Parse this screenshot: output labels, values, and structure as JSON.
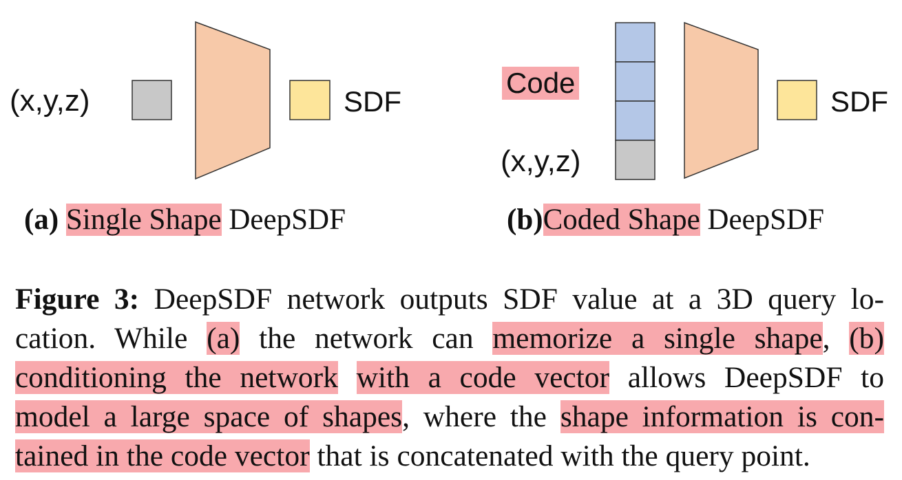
{
  "figure_a": {
    "input_label": "(x,y,z)",
    "output_label": "SDF",
    "caption_tag": "(a)",
    "caption_highlight": "Single Shape",
    "caption_rest": "DeepSDF",
    "colors": {
      "input_box": "#c8c8c8",
      "network": "#f7c9a9",
      "output_box": "#fde59a"
    }
  },
  "figure_b": {
    "code_label": "Code",
    "input_label": "(x,y,z)",
    "output_label": "SDF",
    "caption_tag": "(b)",
    "caption_highlight": "Coded Shape",
    "caption_rest": "DeepSDF",
    "colors": {
      "code_cells": "#b4c7e7",
      "input_cell": "#c8c8c8",
      "network": "#f7c9a9",
      "output_box": "#fde59a"
    }
  },
  "caption": {
    "label": "Figure 3:",
    "l1_text": "DeepSDF network outputs SDF value at a 3D query lo-",
    "l2_a": "cation.  While",
    "l2_b": "(a)",
    "l2_c": "the network can",
    "l2_d": "memorize a single shape",
    "l2_e": ",",
    "l2_f": "(b)",
    "l3_a": "conditioning the network",
    "l3_b": "with a code vector",
    "l3_c": "allows DeepSDF to",
    "l4_a": "model a large space of shapes",
    "l4_b": ", where the",
    "l4_c": "shape information is con-",
    "l5_a": "tained in the code vector",
    "l5_b": "that is concatenated with the query point."
  },
  "highlight_color": "#f8a9ad"
}
